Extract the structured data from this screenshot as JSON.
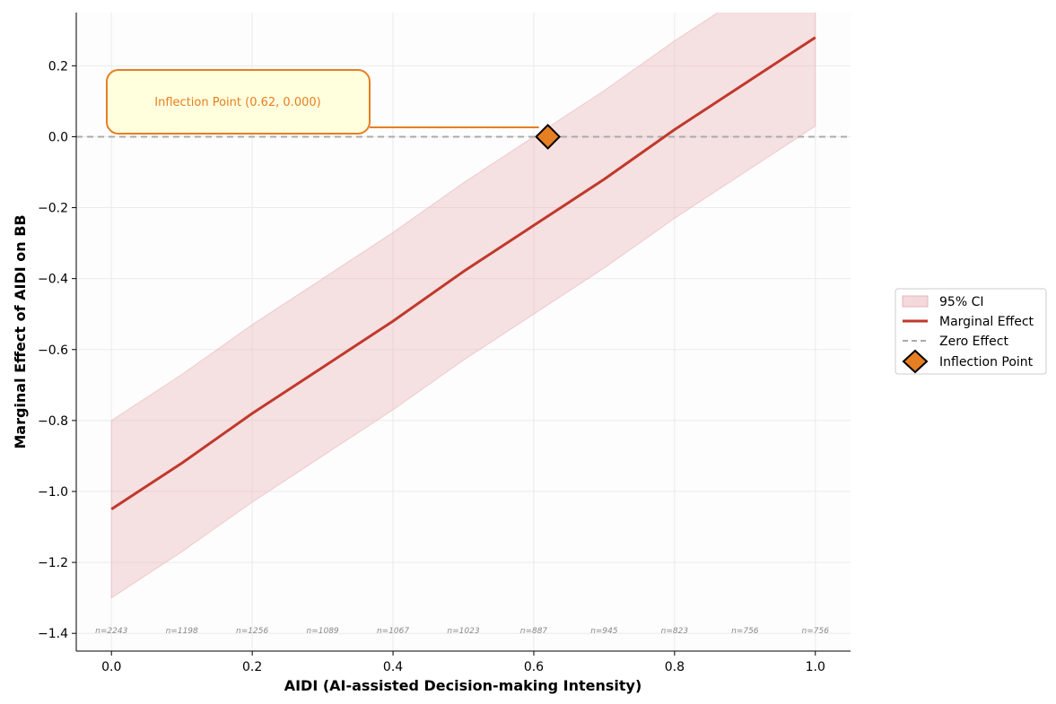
{
  "chart_data": {
    "type": "line",
    "title": "",
    "xlabel": "AIDI (AI-assisted Decision-making Intensity)",
    "ylabel": "Marginal Effect of AIDI on BB",
    "xlim": [
      -0.05,
      1.05
    ],
    "ylim": [
      -1.45,
      0.35
    ],
    "x_ticks": [
      0.0,
      0.2,
      0.4,
      0.6,
      0.8,
      1.0
    ],
    "x_tick_labels": [
      "0.0",
      "0.2",
      "0.4",
      "0.6",
      "0.8",
      "1.0"
    ],
    "y_ticks": [
      -1.4,
      -1.2,
      -1.0,
      -0.8,
      -0.6,
      -0.4,
      -0.2,
      0.0,
      0.2
    ],
    "y_tick_labels": [
      "−1.4",
      "−1.2",
      "−1.0",
      "−0.8",
      "−0.6",
      "−0.4",
      "−0.2",
      "0.0",
      "0.2"
    ],
    "grid": true,
    "x": [
      0.0,
      0.1,
      0.2,
      0.3,
      0.4,
      0.5,
      0.6,
      0.7,
      0.8,
      0.9,
      1.0
    ],
    "series": [
      {
        "name": "Marginal Effect",
        "color": "#c0392b",
        "values": [
          -1.05,
          -0.92,
          -0.78,
          -0.65,
          -0.52,
          -0.38,
          -0.25,
          -0.12,
          0.02,
          0.15,
          0.28
        ]
      }
    ],
    "ci": {
      "name": "95% CI",
      "color": "#e8b4b8",
      "lower": [
        -1.3,
        -1.17,
        -1.03,
        -0.9,
        -0.77,
        -0.63,
        -0.5,
        -0.37,
        -0.23,
        -0.1,
        0.03
      ],
      "upper": [
        -0.8,
        -0.67,
        -0.53,
        -0.4,
        -0.27,
        -0.13,
        0.0,
        0.13,
        0.27,
        0.4,
        0.53
      ]
    },
    "reference_line": {
      "name": "Zero Effect",
      "y": 0.0,
      "color": "#aaaaaa",
      "style": "dashed"
    },
    "inflection_point": {
      "name": "Inflection Point",
      "x": 0.62,
      "y": 0.0,
      "color": "#e67e22",
      "label": "Inflection Point (0.62, 0.000)"
    },
    "sample_sizes": [
      "n=2243",
      "n=1198",
      "n=1256",
      "n=1089",
      "n=1067",
      "n=1023",
      "n=887",
      "n=945",
      "n=823",
      "n=756",
      "n=756"
    ],
    "legend": {
      "position": "right",
      "entries": [
        "95% CI",
        "Marginal Effect",
        "Zero Effect",
        "Inflection Point"
      ]
    }
  }
}
